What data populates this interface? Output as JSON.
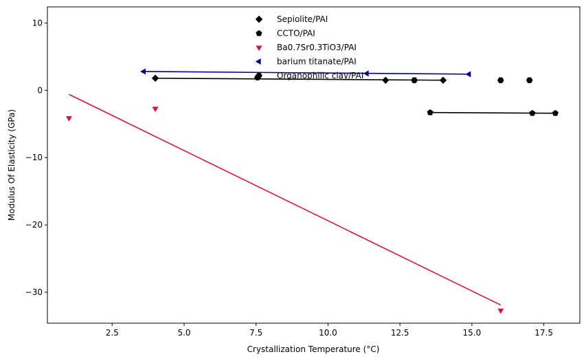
{
  "chart_data": {
    "type": "scatter",
    "title": "",
    "xlabel": "Crystallization Temperature (°C)",
    "ylabel": "Modulus Of Elasticity (GPa)",
    "xlim": [
      0.25,
      18.75
    ],
    "ylim": [
      -34.6,
      12.4
    ],
    "xticks": [
      2.5,
      5.0,
      7.5,
      10.0,
      12.5,
      15.0,
      17.5
    ],
    "xtick_labels": [
      "2.5",
      "5.0",
      "7.5",
      "10.0",
      "12.5",
      "15.0",
      "17.5"
    ],
    "yticks": [
      -30,
      -20,
      -10,
      0,
      10
    ],
    "ytick_labels": [
      "−30",
      "−20",
      "−10",
      "0",
      "10"
    ],
    "grid": false,
    "legend_position": "top-center",
    "series": [
      {
        "name": "Sepiolite/PAI",
        "marker": "diamond",
        "color": "#000000",
        "points": [
          [
            4.0,
            1.8
          ],
          [
            12.0,
            1.5
          ],
          [
            14.0,
            1.5
          ]
        ],
        "trend_line": [
          [
            4.0,
            1.8
          ],
          [
            14.0,
            1.5
          ]
        ]
      },
      {
        "name": "CCTO/PAI",
        "marker": "pentagon",
        "color": "#000000",
        "points": [
          [
            13.55,
            -3.3
          ],
          [
            17.1,
            -3.4
          ],
          [
            17.9,
            -3.4
          ]
        ],
        "trend_line": [
          [
            13.55,
            -3.3
          ],
          [
            17.9,
            -3.4
          ]
        ]
      },
      {
        "name": "Ba0.7Sr0.3TiO3/PAI",
        "marker": "triangle-down",
        "color": "#dc143c",
        "points": [
          [
            1.0,
            -4.1
          ],
          [
            4.0,
            -2.7
          ],
          [
            16.0,
            -32.7
          ]
        ],
        "trend_line": [
          [
            1.0,
            -0.6
          ],
          [
            16.0,
            -31.9
          ]
        ]
      },
      {
        "name": "barium titanate/PAI",
        "marker": "triangle-left",
        "color": "#00008b",
        "points": [
          [
            3.6,
            2.8
          ],
          [
            11.35,
            2.5
          ],
          [
            14.9,
            2.4
          ]
        ],
        "trend_line": [
          [
            3.6,
            2.8
          ],
          [
            14.9,
            2.4
          ]
        ]
      },
      {
        "name": "Organophilic clay/PAI",
        "marker": "hexagon",
        "color": "#000000",
        "points": [
          [
            7.55,
            1.9
          ],
          [
            13.0,
            1.5
          ],
          [
            16.0,
            1.5
          ],
          [
            17.0,
            1.5
          ]
        ],
        "trend_line": null
      }
    ]
  }
}
